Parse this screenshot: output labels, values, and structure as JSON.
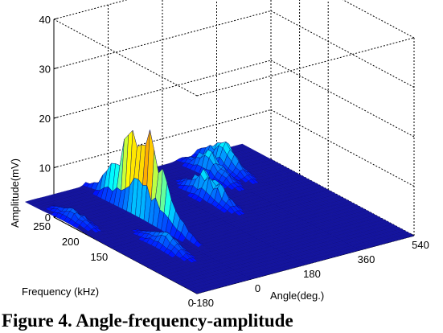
{
  "chart_data": {
    "type": "surface",
    "title": "",
    "xlabel": "Angle(deg.)",
    "ylabel": "Frequency (kHz)",
    "zlabel": "Amplitude(mV)",
    "x_ticks": [
      "-180",
      "0",
      "180",
      "360",
      "540"
    ],
    "y_ticks": [
      "0",
      "150",
      "200",
      "250"
    ],
    "z_ticks": [
      "0",
      "10",
      "20",
      "30",
      "40"
    ],
    "xlim": [
      -180,
      540
    ],
    "ylim": [
      0,
      250
    ],
    "zlim": [
      0,
      40
    ],
    "grid": true,
    "colormap": "jet",
    "peaks": [
      {
        "angle": 20,
        "frequency": 200,
        "amplitude": 17
      },
      {
        "angle": -60,
        "frequency": 120,
        "amplitude": 3
      },
      {
        "angle": -150,
        "frequency": 230,
        "amplitude": 2
      },
      {
        "angle": 240,
        "frequency": 200,
        "amplitude": 5
      },
      {
        "angle": 340,
        "frequency": 250,
        "amplitude": 4
      },
      {
        "angle": 400,
        "frequency": 260,
        "amplitude": 5
      }
    ]
  },
  "caption": "Figure 4. Angle-frequency-amplitude"
}
